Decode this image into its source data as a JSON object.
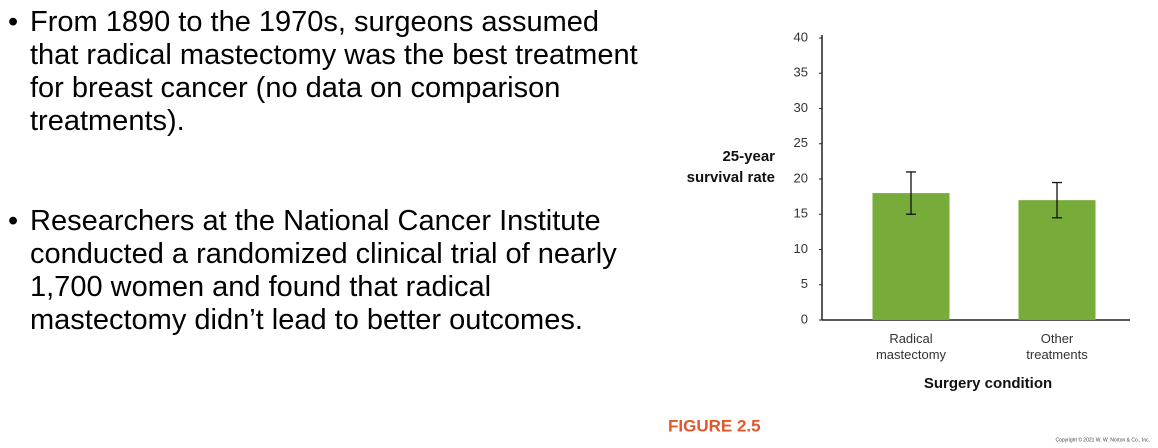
{
  "bullets": [
    "From 1890 to the 1970s, surgeons assumed that radical mastectomy was the best treatment for breast cancer (no data on comparison treatments).",
    "Researchers at the National Cancer Institute conducted a randomized clinical trial of nearly 1,700 women and found that radical mastectomy didn’t lead to better outcomes."
  ],
  "figure_label": "FIGURE 2.5",
  "copyright": "Copyright © 2021 W. W. Norton & Co., Inc.",
  "chart_data": {
    "type": "bar",
    "categories": [
      "Radical mastectomy",
      "Other treatments"
    ],
    "values": [
      18,
      17
    ],
    "errors": [
      3,
      2.5
    ],
    "color": "#77ac3b",
    "ylabel": [
      "25-year",
      "survival rate"
    ],
    "xlabel": "Surgery condition",
    "ylim": [
      0,
      40
    ],
    "yticks": [
      0,
      5,
      10,
      15,
      20,
      25,
      30,
      35,
      40
    ],
    "grid": false
  }
}
